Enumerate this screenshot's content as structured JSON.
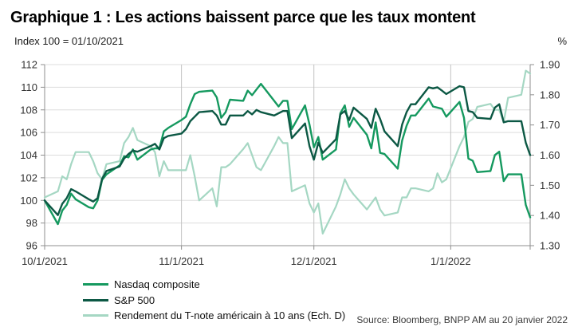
{
  "title": "Graphique 1 : Les actions baissent parce que les taux montent",
  "subtitle_left": "Index 100 = 01/10/2021",
  "subtitle_right": "%",
  "source": "Source: Bloomberg, BNPP AM au 20 janvier 2022",
  "legend": [
    {
      "label": "Nasdaq composite"
    },
    {
      "label": "S&P 500"
    },
    {
      "label": "Rendement du T-note américain à 10 ans (Ech. D)"
    }
  ],
  "colors": {
    "nasdaq": "#15995f",
    "sp500": "#0c5844",
    "tnote": "#a5d7c3",
    "grid_h": "#dddddd",
    "grid_v": "#c2c2c2",
    "axis": "#8f8f8f",
    "tick_text": "#333333"
  },
  "chart_data": {
    "type": "line",
    "title": "Graphique 1 : Les actions baissent parce que les taux montent",
    "xlabel": "",
    "ylabel_left": "Index 100 = 01/10/2021",
    "ylabel_right": "%",
    "legend_position": "bottom-left",
    "grid": true,
    "x_axis": {
      "tick_labels": [
        "10/1/2021",
        "11/1/2021",
        "12/1/2021",
        "1/1/2022"
      ],
      "tick_days": [
        0,
        31,
        61,
        92
      ],
      "domain_days": [
        0,
        110
      ]
    },
    "y_left": {
      "min": 96,
      "max": 112,
      "step": 2,
      "tick_values": [
        96,
        98,
        100,
        102,
        104,
        106,
        108,
        110,
        112
      ],
      "tick_labels": [
        "96",
        "98",
        "100",
        "102",
        "104",
        "106",
        "108",
        "110",
        "112"
      ]
    },
    "y_right": {
      "min": 1.3,
      "max": 1.9,
      "step": 0.1,
      "tick_values": [
        1.3,
        1.4,
        1.5,
        1.6,
        1.7,
        1.8,
        1.9
      ],
      "tick_labels": [
        "1.30",
        "1.40",
        "1.50",
        "1.60",
        "1.70",
        "1.80",
        "1.90"
      ]
    },
    "x_days": [
      0,
      3,
      4,
      5,
      6,
      7,
      10,
      11,
      12,
      13,
      14,
      17,
      18,
      19,
      20,
      21,
      24,
      25,
      26,
      27,
      28,
      31,
      32,
      33,
      34,
      35,
      38,
      39,
      40,
      41,
      42,
      45,
      46,
      47,
      48,
      49,
      52,
      53,
      54,
      55,
      56,
      59,
      60,
      61,
      62,
      63,
      66,
      67,
      68,
      69,
      70,
      73,
      74,
      75,
      76,
      77,
      80,
      81,
      82,
      83,
      84,
      87,
      88,
      89,
      90,
      91,
      94,
      95,
      96,
      97,
      98,
      101,
      102,
      103,
      104,
      105,
      108,
      109,
      110
    ],
    "series": [
      {
        "name": "Nasdaq composite",
        "axis": "left",
        "color_key": "nasdaq",
        "width": 2.4,
        "values": [
          100,
          97.9,
          99.1,
          99.6,
          100.6,
          100.1,
          99.4,
          99.3,
          100,
          101.8,
          102.3,
          103.1,
          103.9,
          103.8,
          104.5,
          103.6,
          104.5,
          104.6,
          104.6,
          106.1,
          106.4,
          107.1,
          107.4,
          108.5,
          109.4,
          109.6,
          109.7,
          109.1,
          107.3,
          107.8,
          108.9,
          108.8,
          109.7,
          109.3,
          109.8,
          110.3,
          108.8,
          108.3,
          108.8,
          108.8,
          106.3,
          108.4,
          106.7,
          104.7,
          105.6,
          103.6,
          104.5,
          107.7,
          108.4,
          106.5,
          107.3,
          105.8,
          104.6,
          106.9,
          104.2,
          104.1,
          102.8,
          105.3,
          106.6,
          107.5,
          107.5,
          109,
          108.3,
          108.2,
          108.1,
          107.4,
          108.7,
          107.3,
          103.7,
          103.5,
          102.5,
          102.6,
          104,
          104.3,
          101.7,
          102.3,
          102.3,
          99.6,
          98.5
        ]
      },
      {
        "name": "S&P 500",
        "axis": "left",
        "color_key": "sp500",
        "width": 2.4,
        "values": [
          100,
          98.7,
          99.7,
          100.2,
          101,
          100.8,
          100.1,
          99.9,
          100.2,
          101.9,
          102.6,
          103,
          103.7,
          104.1,
          104.4,
          104.3,
          104.8,
          105,
          104.5,
          105.5,
          105.7,
          105.9,
          106.3,
          107,
          107.4,
          107.8,
          107.9,
          107.5,
          106.7,
          106.7,
          107.5,
          107.5,
          107.9,
          107.6,
          108,
          107.8,
          107.5,
          107.7,
          107.9,
          107.9,
          105.5,
          106.8,
          104.8,
          103.6,
          105.1,
          104.2,
          105.4,
          107.6,
          107.9,
          107.1,
          108.2,
          107.2,
          106.4,
          108.1,
          107.2,
          106.1,
          104.8,
          106.7,
          107.8,
          108.5,
          108.5,
          110,
          109.9,
          110,
          109.7,
          109.4,
          110.1,
          110,
          107.9,
          107.8,
          107.3,
          107.2,
          108.2,
          108.5,
          106.9,
          107,
          107,
          105.1,
          104
        ]
      },
      {
        "name": "Rendement du T-note américain à 10 ans (Ech. D)",
        "axis": "right",
        "color_key": "tnote",
        "width": 2.2,
        "values": [
          1.46,
          1.48,
          1.53,
          1.52,
          1.57,
          1.61,
          1.61,
          1.58,
          1.54,
          1.52,
          1.57,
          1.58,
          1.64,
          1.66,
          1.69,
          1.65,
          1.63,
          1.61,
          1.53,
          1.58,
          1.55,
          1.55,
          1.55,
          1.6,
          1.53,
          1.45,
          1.49,
          1.43,
          1.56,
          1.56,
          1.57,
          1.62,
          1.64,
          1.6,
          1.56,
          1.55,
          1.63,
          1.66,
          1.64,
          1.64,
          1.48,
          1.5,
          1.44,
          1.41,
          1.44,
          1.34,
          1.43,
          1.47,
          1.52,
          1.49,
          1.47,
          1.42,
          1.44,
          1.46,
          1.42,
          1.4,
          1.41,
          1.46,
          1.46,
          1.49,
          1.49,
          1.48,
          1.49,
          1.54,
          1.51,
          1.52,
          1.63,
          1.66,
          1.71,
          1.72,
          1.76,
          1.77,
          1.75,
          1.75,
          1.71,
          1.79,
          1.8,
          1.88,
          1.87
        ]
      }
    ]
  }
}
